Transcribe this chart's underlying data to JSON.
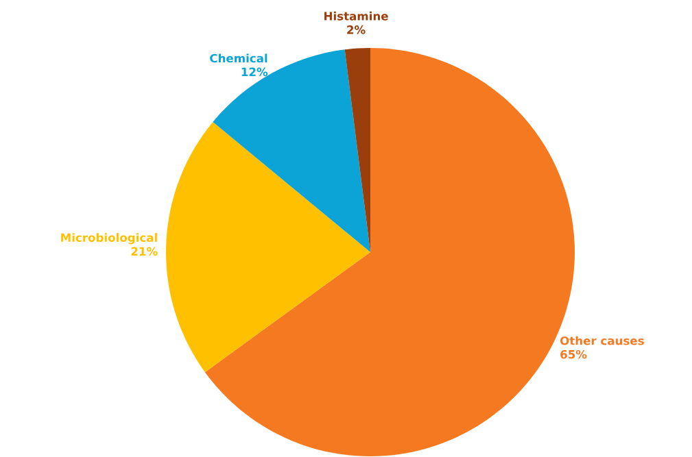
{
  "chart_data": {
    "type": "pie",
    "categories": [
      "Other causes",
      "Microbiological",
      "Chemical",
      "Histamine"
    ],
    "values": [
      65,
      21,
      12,
      2
    ],
    "colors": [
      "#f47920",
      "#ffc000",
      "#0ca3d6",
      "#9a3f0b"
    ],
    "value_labels": [
      "65%",
      "21%",
      "12%",
      "2%"
    ]
  }
}
